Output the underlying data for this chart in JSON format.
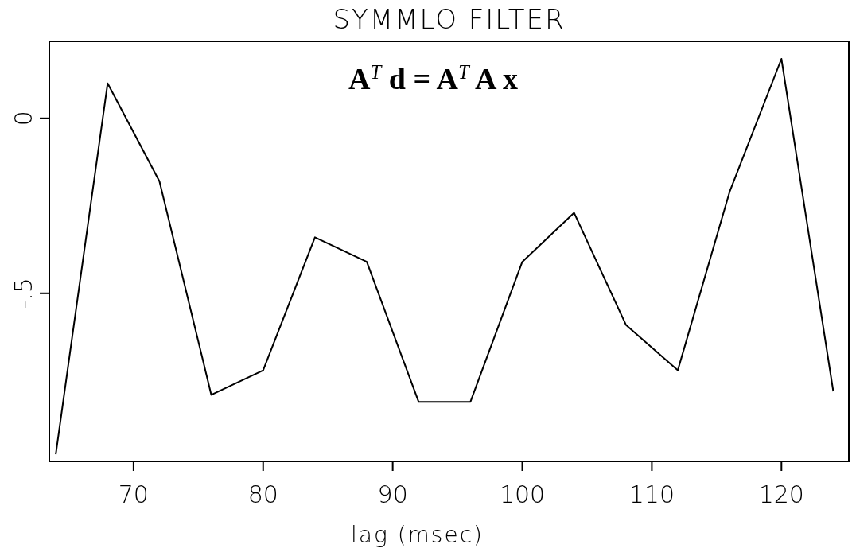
{
  "chart_data": {
    "type": "line",
    "title": "SYMMLO FILTER",
    "xlabel": "lag (msec)",
    "annotations": [
      "A$^{T}$ d = A$^{T}$ A x"
    ],
    "x": [
      64,
      68,
      72,
      76,
      80,
      84,
      88,
      92,
      96,
      100,
      104,
      108,
      112,
      116,
      120,
      124
    ],
    "series": [
      {
        "color": "#000000",
        "values": [
          -0.96,
          0.1,
          -0.18,
          -0.79,
          -0.72,
          -0.34,
          -0.41,
          -0.81,
          -0.81,
          -0.41,
          -0.27,
          -0.59,
          -0.72,
          -0.21,
          0.17,
          -0.78
        ]
      }
    ],
    "xlim": [
      63.5,
      125.2
    ],
    "ylim": [
      -0.98,
      0.22
    ],
    "xticks": [
      70,
      80,
      90,
      100,
      110,
      120
    ],
    "yticks": [
      0,
      {
        "value": -0.5,
        "label": "-.5"
      }
    ],
    "grid": false,
    "marker": "none",
    "line_style": "solid"
  }
}
